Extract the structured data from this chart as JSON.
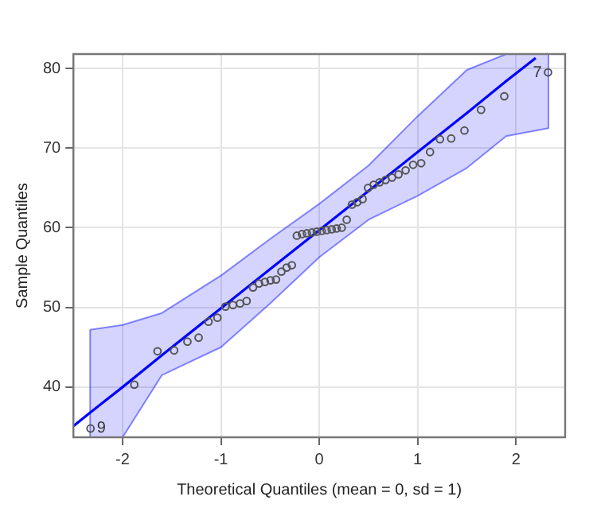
{
  "chart_data": {
    "type": "scatter",
    "xlabel": "Theoretical Quantiles (mean = 0, sd = 1)",
    "ylabel": "Sample Quantiles",
    "xlim": [
      -2.5,
      2.5
    ],
    "xticks": [
      -2,
      -1,
      0,
      1,
      2
    ],
    "ylim": [
      33.7,
      81.8
    ],
    "yticks": [
      40,
      50,
      60,
      70,
      80
    ],
    "grid": true,
    "legend": false,
    "series": [
      {
        "type": "scatter",
        "color": "#555555",
        "marker": "circle",
        "x": [
          -2.326,
          -1.881,
          -1.645,
          -1.476,
          -1.341,
          -1.227,
          -1.126,
          -1.036,
          -0.954,
          -0.878,
          -0.806,
          -0.739,
          -0.674,
          -0.613,
          -0.553,
          -0.496,
          -0.44,
          -0.385,
          -0.332,
          -0.279,
          -0.228,
          -0.176,
          -0.126,
          -0.075,
          -0.025,
          0.025,
          0.075,
          0.126,
          0.176,
          0.228,
          0.279,
          0.332,
          0.385,
          0.44,
          0.496,
          0.553,
          0.613,
          0.674,
          0.739,
          0.806,
          0.878,
          0.954,
          1.036,
          1.126,
          1.227,
          1.341,
          1.476,
          1.645,
          1.881,
          2.326
        ],
        "values": [
          34.8,
          40.3,
          44.5,
          44.6,
          45.7,
          46.2,
          48.2,
          48.7,
          50.1,
          50.3,
          50.5,
          50.8,
          52.5,
          53.0,
          53.2,
          53.4,
          53.5,
          54.5,
          55.0,
          55.3,
          59.0,
          59.2,
          59.3,
          59.4,
          59.5,
          59.6,
          59.7,
          59.8,
          59.9,
          60.0,
          61.0,
          62.9,
          63.2,
          63.6,
          65.0,
          65.4,
          65.7,
          66.0,
          66.3,
          66.7,
          67.2,
          67.9,
          68.1,
          69.5,
          71.1,
          71.2,
          72.2,
          74.8,
          76.5,
          79.5
        ]
      },
      {
        "type": "line",
        "color": "#0000ff",
        "x": [
          -2.5,
          -2.33,
          -2.0,
          -1.6,
          -1.0,
          -0.5,
          0,
          0.5,
          1.0,
          1.5,
          1.9,
          2.2,
          2.33
        ],
        "values": [
          35.1,
          36.8,
          40.0,
          44.0,
          49.9,
          54.8,
          59.7,
          64.6,
          69.5,
          74.4,
          78.4,
          81.3,
          null
        ],
        "lower": [
          null,
          33.7,
          33.7,
          41.5,
          45.0,
          50.5,
          56.3,
          61.0,
          64.0,
          67.5,
          71.5,
          72.2,
          72.5
        ],
        "upper": [
          null,
          47.2,
          47.8,
          49.3,
          54.0,
          58.6,
          63.0,
          67.8,
          74.0,
          79.8,
          81.8,
          81.8,
          81.8
        ]
      }
    ],
    "annotations": [
      {
        "text": "7",
        "x": 2.326,
        "y": 79.5
      },
      {
        "text": "9",
        "x": -2.326,
        "y": 34.8
      }
    ]
  }
}
